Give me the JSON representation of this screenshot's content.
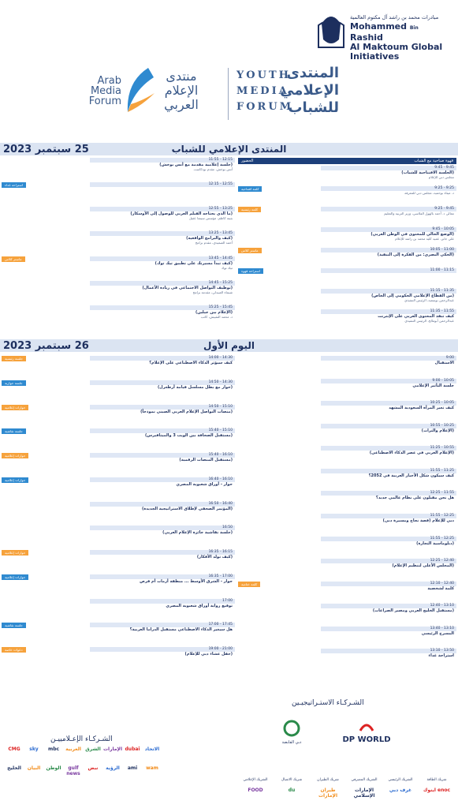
{
  "header": {
    "mbr_ar": "مبادرات محمد بن راشد آل مكتوم العالمية",
    "mbr_en_1": "Mohammed",
    "mbr_en_bin": "Bin",
    "mbr_en_2": "Rashid",
    "mbr_en_3": "Al Maktoum Global Initiatives",
    "youth_en": [
      "YOUTH",
      "MEDIA",
      "FORUM"
    ],
    "youth_ar": [
      "المنتدى",
      "الإعلامي",
      "للشباب"
    ],
    "amf_en": [
      "Arab",
      "Media",
      "Forum"
    ],
    "amf_ar": [
      "منتدى",
      "الإعلام",
      "العربي"
    ]
  },
  "day1": {
    "date": "25 سبتمبر 2023",
    "title": "المنتدى الإعلامي للشباب",
    "right_head": "قهوة صباحية مع الشباب",
    "right_head_tag": "الحضور",
    "right": [
      {
        "time": "9:45 - 9:45",
        "title": "(الجلسة الافتتاحية للشباب)",
        "sub": "مجلس دبي للإعلام"
      },
      {
        "time": "9:25 - 9:25",
        "title": "",
        "sub": "د. ميثاء بوحميد، مجلس دبي للمعرفة",
        "tag": "كلمة افتتاحية"
      },
      {
        "time": "9:45 - 9:25",
        "title": "",
        "sub": "معالي د. أحمد بالهول الفلاسي، وزير التربية والتعليم",
        "tag": "كلمة رئيسية"
      },
      {
        "time": "10:05 - 9:45",
        "title": "(الوضع الحالي للمحتوى في الوطن العربي)",
        "sub": "علي جابر، عميد كلية محمد بن راشد للإعلام"
      },
      {
        "time": "11:00 - 10:05",
        "title": "(الحكي البصري: من الفكرة إلى التنفيذ)",
        "sub": "",
        "tag": "ماستر كلاس"
      },
      {
        "time": "11:15 - 11:00",
        "title": "",
        "sub": "",
        "tag": "استراحة قهوة"
      },
      {
        "time": "11:35 - 11:15",
        "title": "(من القطاع الإعلامي الحكومي إلى الخاص)",
        "sub": "عبدالرحمن بوسعيد، الرئيس التنفيذي"
      },
      {
        "time": "11:55 - 11:35",
        "title": "كيف تنقذ المحتوى العربي على الإنترنت",
        "sub": "عبدالرحمن أبومالح، الرئيس التنفيذي"
      }
    ],
    "left": [
      {
        "time": "12:15 - 11:55",
        "title": "(جلسة إعلامية مقدمة مع أنس بوخش)",
        "sub": "أنس بوخش، مقدم بودكاست"
      },
      {
        "time": "12:55 - 12:15",
        "title": "",
        "sub": "",
        "tag": "استراحة غداء"
      },
      {
        "time": "13:25 - 12:55",
        "title": "(ما الذي يحتاجه الفيلم العربي للوصول إلى الأوسكار)",
        "sub": "بثينة كاظم، مؤسس سينما عقيل"
      },
      {
        "time": "13:45 - 13:25",
        "title": "(كيف والبرامج الواقعية)",
        "sub": "أحمد الصعيدي، مقدم برامج"
      },
      {
        "time": "14:45 - 13:45",
        "title": "(كيف تبدأ مسيرتك على تطبيق تيك توك)",
        "sub": "تيك توك",
        "tag": "ماستر كلاس"
      },
      {
        "time": "15:25 - 14:45",
        "title": "(توظيف التواصل الاجتماعي في ريادة الأعمال)",
        "sub": "شيماء العبيدلي، مقدمة برامج"
      },
      {
        "time": "15:45 - 15:25",
        "title": "(الإعلام بين جيلين)",
        "sub": "د. محمد النقبيش، كاتب"
      }
    ]
  },
  "day2": {
    "date": "26 سبتمبر 2023",
    "title": "اليوم الأول",
    "right": [
      {
        "time": "9:00",
        "title": "الاستقبال"
      },
      {
        "time": "10:05 - 9:00",
        "title": "جلسة التأثير الإعلامي"
      },
      {
        "time": "10:05 - 10:25",
        "title": "كيف تغير المرأة السعودية المشهد"
      },
      {
        "time": "10:25 - 10:55",
        "title": "(الإعلام والتراث)"
      },
      {
        "time": "10:55 - 11:25",
        "title": "(الإعلام العربي في عصر الذكاء الاصطناعي)"
      },
      {
        "time": "11:25 - 11:55",
        "title": "كيف سيكون شكل الأخبار العربية في 2052؟"
      },
      {
        "time": "11:55 - 12:25",
        "title": "هل نحن مقبلون على نظام عالمي جديد؟"
      },
      {
        "time": "12:25 - 11:55",
        "title": "دبي للإعلام (قصة نجاح ومسيرة دبي)"
      },
      {
        "time": "12:25 - 11:55",
        "title": "(دبلوماسية التجارة)"
      },
      {
        "time": "12:40 - 12:25",
        "title": "(المجلس الأعلى لتنظيم الإعلام)"
      },
      {
        "time": "12:40 - 12:10",
        "title": "كلمة لشخصية",
        "tag": "كلمة ختامية"
      },
      {
        "time": "13:10 - 12:40",
        "title": "(مستقبل الخليج العربي ومصير الصراعات)"
      },
      {
        "time": "13:10 - 13:40",
        "title": "المسرح الرئيسي"
      },
      {
        "time": "13:50 - 13:10",
        "title": "استراحة غداء"
      }
    ],
    "left": [
      {
        "time": "14:30 - 14:00",
        "title": "كيف سيؤثر الذكاء الاصطناعي على الإعلام؟",
        "tag": "جلسة رئيسية"
      },
      {
        "time": "14:30 - 14:50",
        "title": "(حوار مع بطل مسلسل قيامة أرطغرل)",
        "tag": "جلسة حوارية"
      },
      {
        "time": "15:10 - 14:50",
        "title": "(منصات التواصل الإعلام العربي الصيني نموذجاً)",
        "tag": "حوارات إعلامية"
      },
      {
        "time": "15:10 - 15:40",
        "title": "(مستقبل الصحافة بين الويب 3 والميتافيرس)",
        "tag": "جلسة نقاشية"
      },
      {
        "time": "16:10 - 15:40",
        "title": "(مستقبل المنصات الرقمية)",
        "tag": "حوارات إعلامية"
      },
      {
        "time": "16:10 - 16:40",
        "title": "حوار - أوراق شعبوية المصري",
        "tag": "حوارات إعلامية"
      },
      {
        "time": "16:40 - 16:50",
        "title": "(المؤتمر الصحفي لإطلاق الاستراتيجية الجديدة)"
      },
      {
        "time": "16:50",
        "title": "(جلسة نقاشية جائزة الإعلام العربي)"
      },
      {
        "time": "16:15 - 16:35",
        "title": "(كيف تولد الأفكار)",
        "tag": "حوارات إعلامية"
      },
      {
        "time": "17:00 - 16:35",
        "title": "حوار - الشرق الأوسط ... منطقة أزمات أم فرص",
        "tag": "حوارات إعلامية"
      },
      {
        "time": "17:00",
        "title": "توقيع رواية أوراق شعبوية المصري"
      },
      {
        "time": "17:45 - 17:00",
        "title": "هل سيغير الذكاء الاصطناعي مستقبل الدراما العربية؟",
        "tag": "جلسة نقاشية"
      },
      {
        "time": "21:00 - 19:00",
        "title": "(حفل عشاء دبي للإعلام)",
        "tag": "دعوات خاصة"
      }
    ]
  },
  "partners": {
    "strategic_title": "الشـركـاء الاستـراتيجيـين",
    "strategic": [
      "DP WORLD",
      "دبي القابضة"
    ],
    "media_title": "الشـركـاء الإعـلامييـن",
    "media": [
      "CMG",
      "sky",
      "mbc",
      "العربية",
      "الشرق",
      "الإمارات",
      "dubai",
      "الاتحاد",
      "الخليج",
      "البيان",
      "الوطن",
      "gulf news",
      "نبض",
      "الرؤية",
      "ami",
      "wam"
    ],
    "others": [
      {
        "label": "شريك الطاقة",
        "name": "اينوك enoc"
      },
      {
        "label": "الشريك الرئيسي",
        "name": "غرف دبي"
      },
      {
        "label": "الشريك المصرفي",
        "name": "الإمارات الإسلامي"
      },
      {
        "label": "شريك الطيران",
        "name": "طيران الإمارات"
      },
      {
        "label": "شريك الاتصال",
        "name": "du"
      },
      {
        "label": "الشريك الإعلامي",
        "name": "FOOD"
      }
    ]
  },
  "colors": {
    "navy": "#1c3f7a",
    "orange": "#f6a23c",
    "blue": "#2f8ad0",
    "light": "#dfe7f5"
  }
}
